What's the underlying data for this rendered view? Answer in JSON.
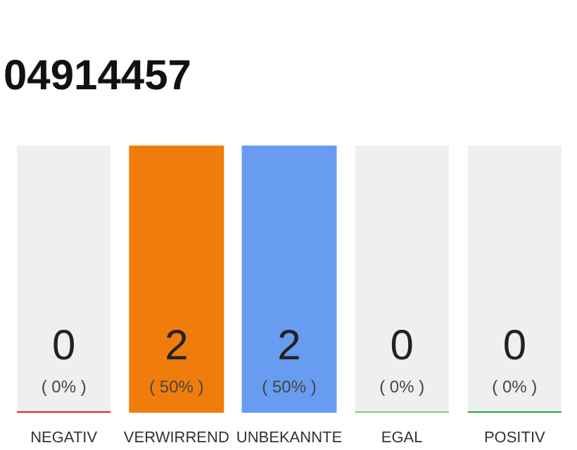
{
  "chart_data": {
    "type": "bar",
    "title": "04914457",
    "stacked": true,
    "categories": [
      "NEGATIV",
      "VERWIRREND",
      "UNBEKANNTE",
      "EGAL",
      "POSITIV"
    ],
    "series": [
      {
        "colors": [
          "#e0203a",
          "#f07d0b",
          "#679cf0",
          "#7ccf6a",
          "#1ea84b"
        ],
        "values": [
          0,
          2,
          2,
          0,
          0
        ],
        "value_labels": [
          "0\n( 0% )",
          "2\n( 50% )",
          "2\n( 50% )",
          "0\n( 0% )",
          "0\n( 0% )"
        ]
      },
      {
        "color": "#efefef",
        "values": [
          2,
          0,
          0,
          2,
          2
        ]
      }
    ],
    "grid": false
  }
}
